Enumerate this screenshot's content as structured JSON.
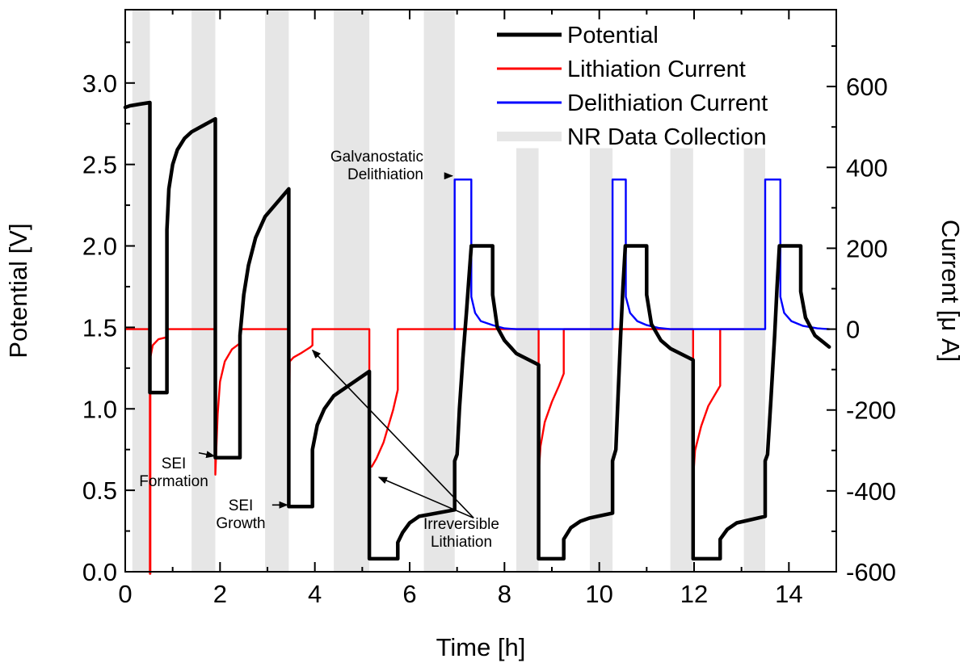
{
  "chart_data": {
    "type": "line",
    "xlabel": "Time [h]",
    "ylabel": "Potential [V]",
    "y2label": "Current [μ A]",
    "xlim": [
      0,
      15
    ],
    "ylim": [
      0,
      3.45
    ],
    "y2lim": [
      -600,
      790
    ],
    "xticks": [
      {
        "value": 0,
        "label": "0"
      },
      {
        "value": 2,
        "label": "2"
      },
      {
        "value": 4,
        "label": "4"
      },
      {
        "value": 6,
        "label": "6"
      },
      {
        "value": 8,
        "label": "8"
      },
      {
        "value": 10,
        "label": "10"
      },
      {
        "value": 12,
        "label": "12"
      },
      {
        "value": 14,
        "label": "14"
      }
    ],
    "yticks": [
      {
        "value": 0.0,
        "label": "0.0"
      },
      {
        "value": 0.5,
        "label": "0.5"
      },
      {
        "value": 1.0,
        "label": "1.0"
      },
      {
        "value": 1.5,
        "label": "1.5"
      },
      {
        "value": 2.0,
        "label": "2.0"
      },
      {
        "value": 2.5,
        "label": "2.5"
      },
      {
        "value": 3.0,
        "label": "3.0"
      }
    ],
    "y2ticks": [
      {
        "value": -600,
        "label": "-600"
      },
      {
        "value": -400,
        "label": "-400"
      },
      {
        "value": -200,
        "label": "-200"
      },
      {
        "value": 0,
        "label": "0"
      },
      {
        "value": 200,
        "label": "200"
      },
      {
        "value": 400,
        "label": "400"
      },
      {
        "value": 600,
        "label": "600"
      }
    ],
    "legend": {
      "placement": "top-right",
      "entries": [
        {
          "name": "Potential",
          "color": "#000000"
        },
        {
          "name": "Lithiation Current",
          "color": "#ff0000"
        },
        {
          "name": "Delithiation Current",
          "color": "#0000ff"
        },
        {
          "name": "NR Data Collection",
          "color": "#e6e6e6"
        }
      ]
    },
    "nr_data_collection": {
      "name": "NR Data Collection",
      "color": "#e6e6e6",
      "intervals": [
        {
          "x": [
            0.15,
            0.52
          ],
          "y_top": 3.45
        },
        {
          "x": [
            1.4,
            1.9
          ],
          "y_top": 3.45
        },
        {
          "x": [
            2.95,
            3.45
          ],
          "y_top": 3.45
        },
        {
          "x": [
            4.4,
            5.15
          ],
          "y_top": 3.45
        },
        {
          "x": [
            6.3,
            6.95
          ],
          "y_top": 3.45
        },
        {
          "x": [
            8.25,
            8.72
          ],
          "y_top": 2.6
        },
        {
          "x": [
            9.8,
            10.28
          ],
          "y_top": 2.6
        },
        {
          "x": [
            11.5,
            11.98
          ],
          "y_top": 2.6
        },
        {
          "x": [
            13.05,
            13.5
          ],
          "y_top": 2.6
        }
      ]
    },
    "series": [
      {
        "name": "Potential",
        "color": "#000000",
        "axis": "left",
        "points": [
          [
            0.0,
            2.85
          ],
          [
            0.1,
            2.86
          ],
          [
            0.3,
            2.87
          ],
          [
            0.52,
            2.88
          ],
          [
            0.52,
            1.1
          ],
          [
            0.88,
            1.1
          ],
          [
            0.88,
            2.1
          ],
          [
            0.92,
            2.35
          ],
          [
            1.0,
            2.5
          ],
          [
            1.1,
            2.59
          ],
          [
            1.25,
            2.66
          ],
          [
            1.4,
            2.7
          ],
          [
            1.9,
            2.78
          ],
          [
            1.9,
            0.7
          ],
          [
            2.42,
            0.7
          ],
          [
            2.42,
            1.45
          ],
          [
            2.5,
            1.7
          ],
          [
            2.6,
            1.88
          ],
          [
            2.75,
            2.05
          ],
          [
            2.95,
            2.18
          ],
          [
            3.45,
            2.35
          ],
          [
            3.45,
            0.4
          ],
          [
            3.95,
            0.4
          ],
          [
            3.95,
            0.75
          ],
          [
            4.05,
            0.9
          ],
          [
            4.2,
            1.0
          ],
          [
            4.4,
            1.08
          ],
          [
            5.15,
            1.23
          ],
          [
            5.15,
            0.08
          ],
          [
            5.75,
            0.08
          ],
          [
            5.75,
            0.18
          ],
          [
            5.85,
            0.24
          ],
          [
            6.0,
            0.3
          ],
          [
            6.2,
            0.34
          ],
          [
            6.95,
            0.38
          ],
          [
            6.95,
            0.68
          ],
          [
            7.0,
            0.72
          ],
          [
            7.05,
            1.0
          ],
          [
            7.12,
            1.3
          ],
          [
            7.2,
            1.6
          ],
          [
            7.25,
            1.8
          ],
          [
            7.3,
            2.0
          ],
          [
            7.75,
            2.0
          ],
          [
            7.75,
            1.7
          ],
          [
            7.85,
            1.5
          ],
          [
            8.0,
            1.42
          ],
          [
            8.25,
            1.34
          ],
          [
            8.72,
            1.27
          ],
          [
            8.72,
            0.08
          ],
          [
            9.25,
            0.08
          ],
          [
            9.25,
            0.2
          ],
          [
            9.4,
            0.27
          ],
          [
            9.6,
            0.31
          ],
          [
            9.8,
            0.33
          ],
          [
            10.28,
            0.36
          ],
          [
            10.28,
            0.68
          ],
          [
            10.35,
            0.75
          ],
          [
            10.4,
            1.1
          ],
          [
            10.45,
            1.45
          ],
          [
            10.5,
            1.75
          ],
          [
            10.55,
            2.0
          ],
          [
            11.0,
            2.0
          ],
          [
            11.0,
            1.7
          ],
          [
            11.1,
            1.52
          ],
          [
            11.3,
            1.42
          ],
          [
            11.5,
            1.37
          ],
          [
            11.98,
            1.3
          ],
          [
            11.98,
            0.08
          ],
          [
            12.55,
            0.08
          ],
          [
            12.55,
            0.2
          ],
          [
            12.7,
            0.26
          ],
          [
            12.9,
            0.3
          ],
          [
            13.05,
            0.31
          ],
          [
            13.5,
            0.34
          ],
          [
            13.5,
            0.68
          ],
          [
            13.55,
            0.72
          ],
          [
            13.62,
            1.05
          ],
          [
            13.7,
            1.45
          ],
          [
            13.75,
            1.75
          ],
          [
            13.8,
            2.0
          ],
          [
            14.25,
            2.0
          ],
          [
            14.25,
            1.72
          ],
          [
            14.35,
            1.56
          ],
          [
            14.55,
            1.45
          ],
          [
            14.85,
            1.38
          ]
        ]
      },
      {
        "name": "Lithiation Current",
        "color": "#ff0000",
        "axis": "right",
        "points": [
          [
            0.0,
            0
          ],
          [
            0.52,
            0
          ],
          [
            0.52,
            -605
          ],
          [
            0.53,
            -605
          ],
          [
            0.53,
            -70
          ],
          [
            0.58,
            -40
          ],
          [
            0.7,
            -25
          ],
          [
            0.88,
            -20
          ],
          [
            0.88,
            0
          ],
          [
            1.4,
            0
          ],
          [
            1.9,
            0
          ],
          [
            1.9,
            -360
          ],
          [
            1.95,
            -210
          ],
          [
            2.0,
            -130
          ],
          [
            2.1,
            -80
          ],
          [
            2.25,
            -50
          ],
          [
            2.42,
            -35
          ],
          [
            2.42,
            0
          ],
          [
            2.95,
            0
          ],
          [
            3.45,
            0
          ],
          [
            3.45,
            -320
          ],
          [
            3.47,
            -80
          ],
          [
            3.55,
            -70
          ],
          [
            3.7,
            -60
          ],
          [
            3.9,
            -45
          ],
          [
            3.95,
            -40
          ],
          [
            3.95,
            0
          ],
          [
            4.4,
            0
          ],
          [
            5.15,
            0
          ],
          [
            5.15,
            -340
          ],
          [
            5.2,
            -340
          ],
          [
            5.3,
            -320
          ],
          [
            5.45,
            -280
          ],
          [
            5.55,
            -240
          ],
          [
            5.65,
            -200
          ],
          [
            5.75,
            -150
          ],
          [
            5.75,
            0
          ],
          [
            6.3,
            0
          ],
          [
            8.72,
            0
          ],
          [
            8.72,
            -360
          ],
          [
            8.76,
            -290
          ],
          [
            8.85,
            -230
          ],
          [
            9.0,
            -180
          ],
          [
            9.15,
            -140
          ],
          [
            9.25,
            -110
          ],
          [
            9.25,
            0
          ],
          [
            9.8,
            0
          ],
          [
            11.98,
            0
          ],
          [
            11.98,
            -370
          ],
          [
            12.02,
            -300
          ],
          [
            12.15,
            -240
          ],
          [
            12.3,
            -190
          ],
          [
            12.45,
            -160
          ],
          [
            12.55,
            -140
          ],
          [
            12.55,
            0
          ],
          [
            13.05,
            0
          ]
        ]
      },
      {
        "name": "Delithiation Current",
        "color": "#0000ff",
        "axis": "right",
        "points": [
          [
            6.95,
            0
          ],
          [
            6.95,
            370
          ],
          [
            7.3,
            370
          ],
          [
            7.3,
            80
          ],
          [
            7.38,
            40
          ],
          [
            7.5,
            20
          ],
          [
            7.75,
            10
          ],
          [
            8.0,
            2
          ],
          [
            8.25,
            0
          ],
          [
            10.28,
            0
          ],
          [
            10.28,
            370
          ],
          [
            10.56,
            370
          ],
          [
            10.56,
            80
          ],
          [
            10.65,
            40
          ],
          [
            10.8,
            20
          ],
          [
            11.0,
            10
          ],
          [
            11.25,
            3
          ],
          [
            11.5,
            0
          ],
          [
            13.5,
            0
          ],
          [
            13.5,
            370
          ],
          [
            13.82,
            370
          ],
          [
            13.82,
            80
          ],
          [
            13.9,
            40
          ],
          [
            14.05,
            20
          ],
          [
            14.3,
            8
          ],
          [
            14.6,
            2
          ],
          [
            14.85,
            0
          ]
        ]
      }
    ],
    "annotations": [
      {
        "lines": [
          "Galvanostatic",
          "Delithiation"
        ],
        "arrow_from": [
          6.73,
          2.43
        ],
        "arrow_to": [
          6.9,
          2.43
        ]
      },
      {
        "lines": [
          "SEI",
          "Formation"
        ],
        "arrow_from": [
          1.55,
          0.73
        ],
        "arrow_to": [
          1.88,
          0.71
        ]
      },
      {
        "lines": [
          "SEI",
          "Growth"
        ],
        "arrow_from": [
          3.1,
          0.41
        ],
        "arrow_to": [
          3.42,
          0.41
        ]
      },
      {
        "lines": [
          "Irreversible",
          "Lithiation"
        ],
        "arrow_from": [
          7.35,
          0.33
        ],
        "arrow_to": [
          [
            3.95,
            1.36
          ],
          [
            5.35,
            0.58
          ]
        ]
      }
    ]
  }
}
